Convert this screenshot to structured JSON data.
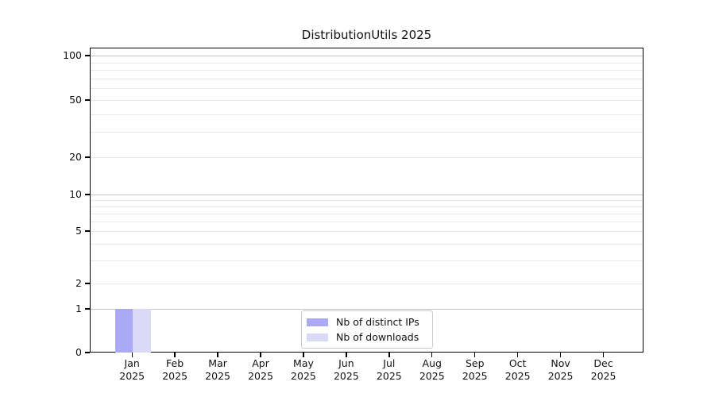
{
  "chart_data": {
    "type": "bar",
    "title": "DistributionUtils 2025",
    "categories": [
      {
        "month": "Jan",
        "year": "2025"
      },
      {
        "month": "Feb",
        "year": "2025"
      },
      {
        "month": "Mar",
        "year": "2025"
      },
      {
        "month": "Apr",
        "year": "2025"
      },
      {
        "month": "May",
        "year": "2025"
      },
      {
        "month": "Jun",
        "year": "2025"
      },
      {
        "month": "Jul",
        "year": "2025"
      },
      {
        "month": "Aug",
        "year": "2025"
      },
      {
        "month": "Sep",
        "year": "2025"
      },
      {
        "month": "Oct",
        "year": "2025"
      },
      {
        "month": "Nov",
        "year": "2025"
      },
      {
        "month": "Dec",
        "year": "2025"
      }
    ],
    "series": [
      {
        "name": "Nb of distinct IPs",
        "color": "#a9a9f5",
        "values": [
          1,
          0,
          0,
          0,
          0,
          0,
          0,
          0,
          0,
          0,
          0,
          0
        ]
      },
      {
        "name": "Nb of downloads",
        "color": "#dadaf7",
        "values": [
          1,
          0,
          0,
          0,
          0,
          0,
          0,
          0,
          0,
          0,
          0,
          0
        ]
      }
    ],
    "y_axis": {
      "scale": "log-like",
      "tick_values": [
        0,
        1,
        2,
        5,
        10,
        20,
        50,
        100
      ],
      "major_grid_values": [
        1,
        10,
        100
      ],
      "minor_grid_values": [
        3,
        4,
        6,
        7,
        8,
        9,
        30,
        40,
        60,
        70,
        80,
        90
      ],
      "ylim": [
        0,
        130
      ]
    },
    "legend": {
      "position": "lower center"
    },
    "grid": "horizontal"
  },
  "colors": {
    "background": "#ffffff",
    "axis": "#000000",
    "text": "#111111",
    "grid_major": "#c3c3c3",
    "grid_minor": "#e9e9e9",
    "legend_border": "#cccccc",
    "bar_distinct_ips": "#a9a9f5",
    "bar_downloads": "#dadaf7"
  }
}
